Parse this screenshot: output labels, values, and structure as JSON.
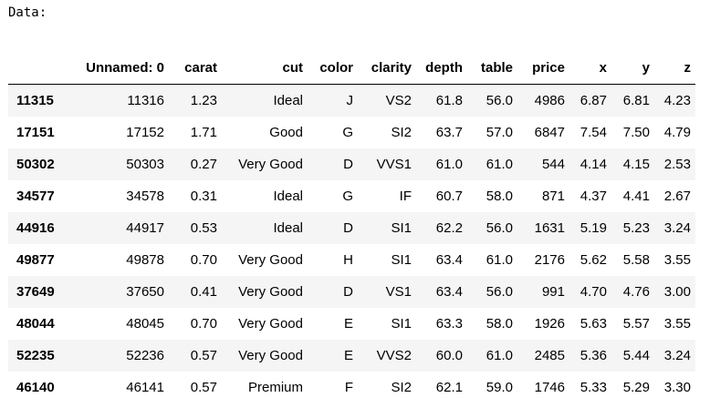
{
  "output": {
    "label": "Data:"
  },
  "table": {
    "columns": [
      "",
      "Unnamed: 0",
      "carat",
      "cut",
      "color",
      "clarity",
      "depth",
      "table",
      "price",
      "x",
      "y",
      "z"
    ],
    "rows": [
      {
        "index": "11315",
        "cells": [
          "11316",
          "1.23",
          "Ideal",
          "J",
          "VS2",
          "61.8",
          "56.0",
          "4986",
          "6.87",
          "6.81",
          "4.23"
        ]
      },
      {
        "index": "17151",
        "cells": [
          "17152",
          "1.71",
          "Good",
          "G",
          "SI2",
          "63.7",
          "57.0",
          "6847",
          "7.54",
          "7.50",
          "4.79"
        ]
      },
      {
        "index": "50302",
        "cells": [
          "50303",
          "0.27",
          "Very Good",
          "D",
          "VVS1",
          "61.0",
          "61.0",
          "544",
          "4.14",
          "4.15",
          "2.53"
        ]
      },
      {
        "index": "34577",
        "cells": [
          "34578",
          "0.31",
          "Ideal",
          "G",
          "IF",
          "60.7",
          "58.0",
          "871",
          "4.37",
          "4.41",
          "2.67"
        ]
      },
      {
        "index": "44916",
        "cells": [
          "44917",
          "0.53",
          "Ideal",
          "D",
          "SI1",
          "62.2",
          "56.0",
          "1631",
          "5.19",
          "5.23",
          "3.24"
        ]
      },
      {
        "index": "49877",
        "cells": [
          "49878",
          "0.70",
          "Very Good",
          "H",
          "SI1",
          "63.4",
          "61.0",
          "2176",
          "5.62",
          "5.58",
          "3.55"
        ]
      },
      {
        "index": "37649",
        "cells": [
          "37650",
          "0.41",
          "Very Good",
          "D",
          "VS1",
          "63.4",
          "56.0",
          "991",
          "4.70",
          "4.76",
          "3.00"
        ]
      },
      {
        "index": "48044",
        "cells": [
          "48045",
          "0.70",
          "Very Good",
          "E",
          "SI1",
          "63.3",
          "58.0",
          "1926",
          "5.63",
          "5.57",
          "3.55"
        ]
      },
      {
        "index": "52235",
        "cells": [
          "52236",
          "0.57",
          "Very Good",
          "E",
          "VVS2",
          "60.0",
          "61.0",
          "2485",
          "5.36",
          "5.44",
          "3.24"
        ]
      },
      {
        "index": "46140",
        "cells": [
          "46141",
          "0.57",
          "Premium",
          "F",
          "SI2",
          "62.1",
          "59.0",
          "1746",
          "5.33",
          "5.29",
          "3.30"
        ]
      }
    ]
  }
}
